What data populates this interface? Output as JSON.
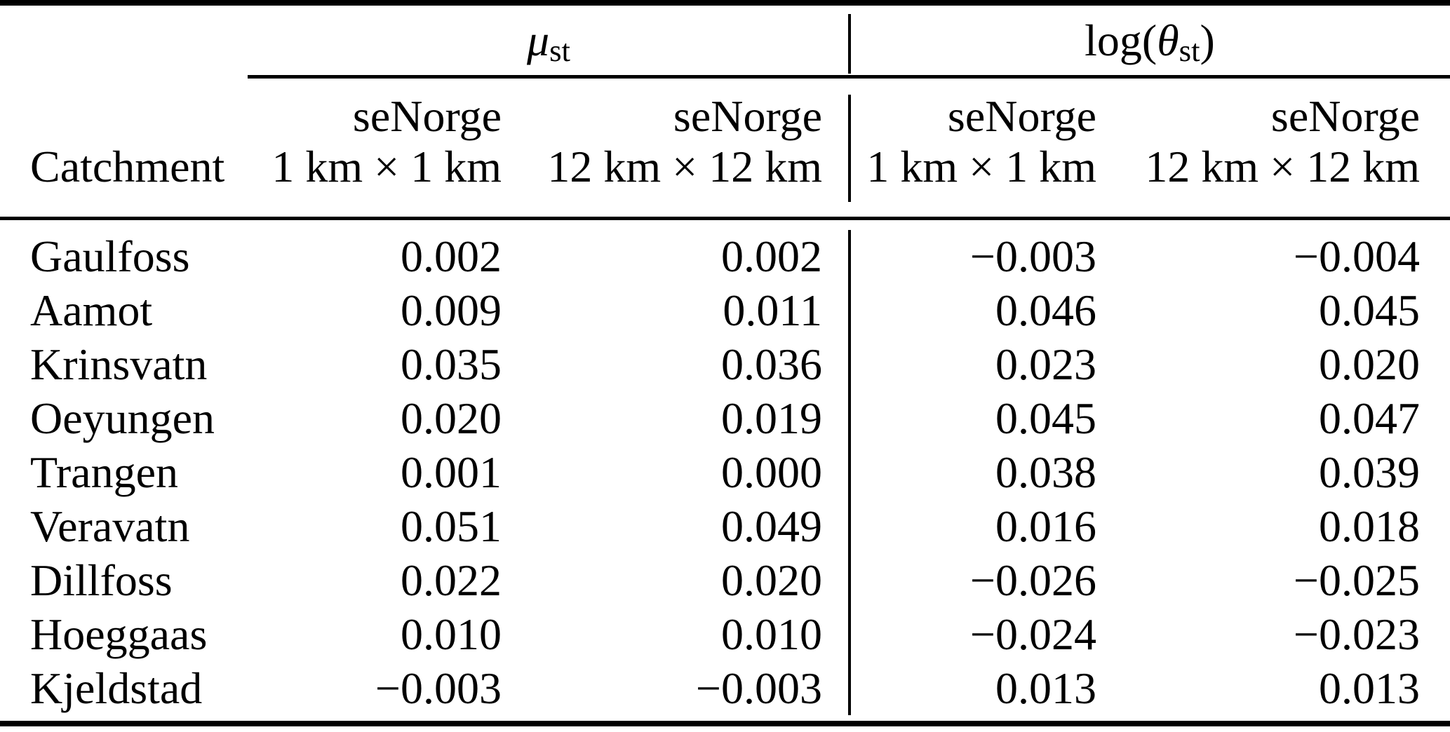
{
  "page": {
    "background_color": "#ffffff",
    "text_color": "#000000"
  },
  "table": {
    "group_headers": [
      {
        "pre": "",
        "symbol": "μ",
        "subscript": "st",
        "post": ""
      },
      {
        "pre": "log(",
        "symbol": "θ",
        "subscript": "st",
        "post": ")"
      }
    ],
    "corner_header": "Catchment",
    "column_headers": [
      {
        "line1": "seNorge",
        "line2": "1 km × 1 km"
      },
      {
        "line1": "seNorge",
        "line2": "12 km × 12 km"
      },
      {
        "line1": "seNorge",
        "line2": "1 km × 1 km"
      },
      {
        "line1": "seNorge",
        "line2": "12 km × 12 km"
      }
    ],
    "rows": [
      {
        "catchment": "Gaulfoss",
        "mu_1km": "0.002",
        "mu_12km": "0.002",
        "logtheta_1km": "−0.003",
        "logtheta_12km": "−0.004"
      },
      {
        "catchment": "Aamot",
        "mu_1km": "0.009",
        "mu_12km": "0.011",
        "logtheta_1km": "0.046",
        "logtheta_12km": "0.045"
      },
      {
        "catchment": "Krinsvatn",
        "mu_1km": "0.035",
        "mu_12km": "0.036",
        "logtheta_1km": "0.023",
        "logtheta_12km": "0.020"
      },
      {
        "catchment": "Oeyungen",
        "mu_1km": "0.020",
        "mu_12km": "0.019",
        "logtheta_1km": "0.045",
        "logtheta_12km": "0.047"
      },
      {
        "catchment": "Trangen",
        "mu_1km": "0.001",
        "mu_12km": "0.000",
        "logtheta_1km": "0.038",
        "logtheta_12km": "0.039"
      },
      {
        "catchment": "Veravatn",
        "mu_1km": "0.051",
        "mu_12km": "0.049",
        "logtheta_1km": "0.016",
        "logtheta_12km": "0.018"
      },
      {
        "catchment": "Dillfoss",
        "mu_1km": "0.022",
        "mu_12km": "0.020",
        "logtheta_1km": "−0.026",
        "logtheta_12km": "−0.025"
      },
      {
        "catchment": "Hoeggaas",
        "mu_1km": "0.010",
        "mu_12km": "0.010",
        "logtheta_1km": "−0.024",
        "logtheta_12km": "−0.023"
      },
      {
        "catchment": "Kjeldstad",
        "mu_1km": "−0.003",
        "mu_12km": "−0.003",
        "logtheta_1km": "0.013",
        "logtheta_12km": "0.013"
      }
    ]
  }
}
